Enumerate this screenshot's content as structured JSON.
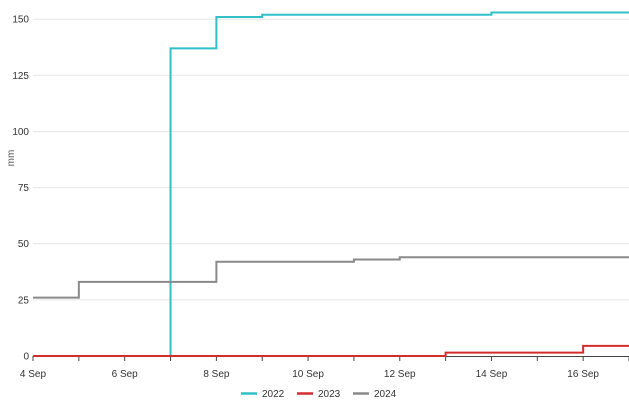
{
  "chart_data": {
    "type": "line",
    "step": true,
    "title": "",
    "xlabel": "",
    "ylabel": "mm",
    "ylim": [
      0,
      155
    ],
    "xlim": [
      "2024-09-04",
      "2024-09-17"
    ],
    "y_ticks": [
      0,
      25,
      50,
      75,
      100,
      125,
      150
    ],
    "x_ticks": [
      "2024-09-04",
      "2024-09-06",
      "2024-09-08",
      "2024-09-10",
      "2024-09-12",
      "2024-09-14",
      "2024-09-16"
    ],
    "x_tick_labels": [
      "4 Sep",
      "6 Sep",
      "8 Sep",
      "10 Sep",
      "12 Sep",
      "14 Sep",
      "16 Sep"
    ],
    "grid": "horizontal",
    "legend_position": "bottom-center",
    "series": [
      {
        "name": "2022",
        "color": "#2fc0c8",
        "x": [
          "2024-09-04",
          "2024-09-07",
          "2024-09-08",
          "2024-09-09",
          "2024-09-14",
          "2024-09-17"
        ],
        "y": [
          0,
          137,
          151,
          152,
          153,
          153
        ]
      },
      {
        "name": "2023",
        "color": "#d22d2d",
        "x": [
          "2024-09-04",
          "2024-09-13",
          "2024-09-16",
          "2024-09-17"
        ],
        "y": [
          0,
          1.5,
          4.5,
          4.5
        ]
      },
      {
        "name": "2024",
        "color": "#8a8a8a",
        "x": [
          "2024-09-04",
          "2024-09-05",
          "2024-09-08",
          "2024-09-11",
          "2024-09-12",
          "2024-09-17"
        ],
        "y": [
          26,
          33,
          42,
          43,
          44,
          44
        ]
      }
    ]
  }
}
